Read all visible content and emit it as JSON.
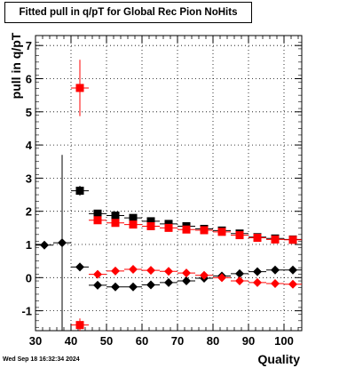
{
  "chart_data": {
    "type": "scatter",
    "title": "Fitted pull in q/pT for Global Rec Pion NoHits",
    "xlabel": "Quality",
    "ylabel": "pull in q/pT",
    "xlim": [
      30,
      105
    ],
    "ylim": [
      -1.6,
      7.3
    ],
    "xticks": [
      30,
      40,
      50,
      60,
      70,
      80,
      90,
      100
    ],
    "yticks": [
      -1,
      0,
      1,
      2,
      3,
      4,
      5,
      6,
      7
    ],
    "grid": true,
    "series": [
      {
        "marker": "square",
        "color": "#000000",
        "points": [
          {
            "x": 42.5,
            "y": 2.62,
            "err": 0.15
          },
          {
            "x": 47.5,
            "y": 1.93,
            "err": 0.05
          },
          {
            "x": 52.5,
            "y": 1.87,
            "err": 0.04
          },
          {
            "x": 57.5,
            "y": 1.8,
            "err": 0.04
          },
          {
            "x": 62.5,
            "y": 1.7,
            "err": 0.04
          },
          {
            "x": 67.5,
            "y": 1.62,
            "err": 0.03
          },
          {
            "x": 72.5,
            "y": 1.55,
            "err": 0.03
          },
          {
            "x": 77.5,
            "y": 1.47,
            "err": 0.03
          },
          {
            "x": 82.5,
            "y": 1.42,
            "err": 0.03
          },
          {
            "x": 87.5,
            "y": 1.33,
            "err": 0.03
          },
          {
            "x": 92.5,
            "y": 1.22,
            "err": 0.03
          },
          {
            "x": 97.5,
            "y": 1.18,
            "err": 0.03
          },
          {
            "x": 102.5,
            "y": 1.15,
            "err": 0.03
          }
        ]
      },
      {
        "marker": "square",
        "color": "#ff0000",
        "points": [
          {
            "x": 42.5,
            "y": 5.72,
            "err": 0.85
          },
          {
            "x": 42.5,
            "y": -1.43,
            "err": 0.2
          },
          {
            "x": 47.5,
            "y": 1.73,
            "err": 0.05
          },
          {
            "x": 52.5,
            "y": 1.65,
            "err": 0.04
          },
          {
            "x": 57.5,
            "y": 1.6,
            "err": 0.04
          },
          {
            "x": 62.5,
            "y": 1.55,
            "err": 0.04
          },
          {
            "x": 67.5,
            "y": 1.5,
            "err": 0.03
          },
          {
            "x": 72.5,
            "y": 1.45,
            "err": 0.03
          },
          {
            "x": 77.5,
            "y": 1.43,
            "err": 0.03
          },
          {
            "x": 82.5,
            "y": 1.38,
            "err": 0.03
          },
          {
            "x": 87.5,
            "y": 1.28,
            "err": 0.03
          },
          {
            "x": 92.5,
            "y": 1.2,
            "err": 0.03
          },
          {
            "x": 97.5,
            "y": 1.15,
            "err": 0.03
          },
          {
            "x": 102.5,
            "y": 1.14,
            "err": 0.03
          }
        ]
      },
      {
        "marker": "diamond",
        "color": "#000000",
        "points": [
          {
            "x": 32.5,
            "y": 0.98,
            "err": 0.0
          },
          {
            "x": 37.5,
            "y": 1.05,
            "err": 2.65
          },
          {
            "x": 42.5,
            "y": 0.32,
            "err": 0.12
          },
          {
            "x": 47.5,
            "y": -0.23,
            "err": 0.04
          },
          {
            "x": 52.5,
            "y": -0.28,
            "err": 0.03
          },
          {
            "x": 57.5,
            "y": -0.28,
            "err": 0.03
          },
          {
            "x": 62.5,
            "y": -0.22,
            "err": 0.03
          },
          {
            "x": 67.5,
            "y": -0.15,
            "err": 0.03
          },
          {
            "x": 72.5,
            "y": -0.1,
            "err": 0.03
          },
          {
            "x": 77.5,
            "y": -0.02,
            "err": 0.03
          },
          {
            "x": 82.5,
            "y": 0.05,
            "err": 0.03
          },
          {
            "x": 87.5,
            "y": 0.12,
            "err": 0.03
          },
          {
            "x": 92.5,
            "y": 0.18,
            "err": 0.03
          },
          {
            "x": 97.5,
            "y": 0.23,
            "err": 0.03
          },
          {
            "x": 102.5,
            "y": 0.23,
            "err": 0.03
          }
        ]
      },
      {
        "marker": "diamond",
        "color": "#ff0000",
        "points": [
          {
            "x": 47.5,
            "y": 0.1,
            "err": 0.04
          },
          {
            "x": 52.5,
            "y": 0.2,
            "err": 0.03
          },
          {
            "x": 57.5,
            "y": 0.25,
            "err": 0.03
          },
          {
            "x": 62.5,
            "y": 0.22,
            "err": 0.03
          },
          {
            "x": 67.5,
            "y": 0.19,
            "err": 0.03
          },
          {
            "x": 72.5,
            "y": 0.14,
            "err": 0.03
          },
          {
            "x": 77.5,
            "y": 0.07,
            "err": 0.03
          },
          {
            "x": 82.5,
            "y": 0.0,
            "err": 0.03
          },
          {
            "x": 87.5,
            "y": -0.1,
            "err": 0.03
          },
          {
            "x": 92.5,
            "y": -0.15,
            "err": 0.03
          },
          {
            "x": 97.5,
            "y": -0.18,
            "err": 0.03
          },
          {
            "x": 102.5,
            "y": -0.2,
            "err": 0.03
          }
        ]
      }
    ]
  },
  "footer": {
    "timestamp": "Wed Sep 18 16:32:34 2024"
  }
}
